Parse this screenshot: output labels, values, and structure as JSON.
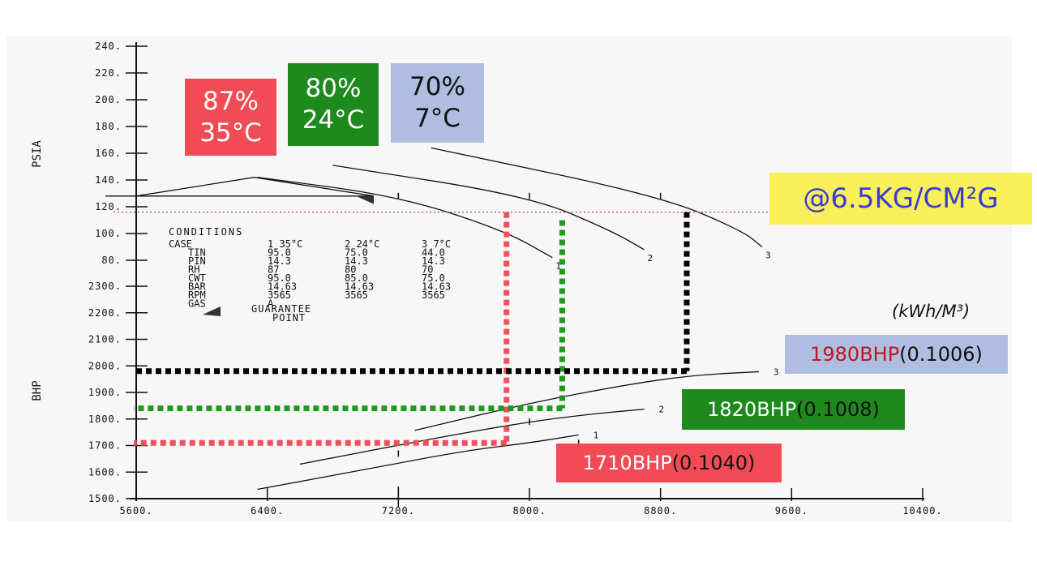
{
  "chart_data": {
    "type": "line",
    "x_axis": {
      "ticks": [
        "5600.",
        "6400.",
        "7200.",
        "8000.",
        "8800.",
        "9600.",
        "10400."
      ],
      "range": [
        5600,
        10400
      ]
    },
    "psia_axis": {
      "title": "PSIA",
      "ticks": [
        "80.",
        "100.",
        "120.",
        "140.",
        "160.",
        "180.",
        "200.",
        "220.",
        "240."
      ],
      "range": [
        80,
        240
      ]
    },
    "bhp_axis": {
      "title": "BHP",
      "ticks": [
        "1500.",
        "1600.",
        "1700.",
        "1800.",
        "1900.",
        "2000.",
        "2100.",
        "2200.",
        "2300."
      ],
      "range": [
        1500,
        2300
      ]
    },
    "psia_series": [
      {
        "name": "1",
        "x": [
          6340,
          7200,
          7850,
          8140
        ],
        "y": [
          142,
          128,
          102,
          82
        ]
      },
      {
        "name": "2",
        "x": [
          6800,
          8000,
          8500,
          8700
        ],
        "y": [
          151,
          128,
          102,
          88
        ]
      },
      {
        "name": "3",
        "x": [
          7400,
          8800,
          9300,
          9420
        ],
        "y": [
          164,
          128,
          102,
          90
        ]
      }
    ],
    "bhp_series": [
      {
        "name": "1",
        "x": [
          6340,
          7000,
          7600,
          8000,
          8300
        ],
        "y": [
          1535,
          1610,
          1680,
          1710,
          1740
        ]
      },
      {
        "name": "2",
        "x": [
          6600,
          7400,
          8000,
          8400,
          8700
        ],
        "y": [
          1630,
          1725,
          1790,
          1820,
          1837
        ]
      },
      {
        "name": "3",
        "x": [
          7300,
          8000,
          8600,
          9000,
          9400
        ],
        "y": [
          1757,
          1860,
          1930,
          1965,
          1978
        ]
      }
    ],
    "design_line": {
      "x": [
        5600,
        6320,
        7050
      ],
      "y": [
        128,
        142,
        128
      ]
    },
    "ticks_on_curves": [
      {
        "axis": "psia",
        "x": [
          7200,
          8000,
          8800
        ],
        "y": [
          128,
          128,
          128
        ]
      },
      {
        "axis": "bhp",
        "x": [
          7200,
          8000,
          8300
        ],
        "y": [
          1670,
          1790,
          1710
        ]
      }
    ],
    "guides": [
      {
        "case": "87%",
        "color": "#f0505a",
        "x": 7860,
        "psia": 116,
        "bhp": 1710
      },
      {
        "case": "80%",
        "color": "#1f9a1f",
        "x": 8200,
        "psia": 110,
        "bhp": 1840
      },
      {
        "case": "70%",
        "color": "#000000",
        "x": 8960,
        "psia": 116,
        "bhp": 1980
      }
    ],
    "reference_line": {
      "psia": 116,
      "color": "#e0303a"
    }
  },
  "conditions": {
    "title": "CONDITIONS",
    "rows": [
      {
        "label": "CASE",
        "c1": "1 35°C",
        "c2": "2 24°C",
        "c3": "3 7°C"
      },
      {
        "label": "TIN",
        "c1": "95.0",
        "c2": "75.0",
        "c3": "44.0"
      },
      {
        "label": "PIN",
        "c1": "14.3",
        "c2": "14.3",
        "c3": "14.3"
      },
      {
        "label": "RH",
        "c1": "87",
        "c2": "80",
        "c3": "70"
      },
      {
        "label": "CWT",
        "c1": "95.0",
        "c2": "85.0",
        "c3": "75.0"
      },
      {
        "label": "BAR",
        "c1": "14.63",
        "c2": "14.63",
        "c3": "14.63"
      },
      {
        "label": "RPM",
        "c1": "3565",
        "c2": "3565",
        "c3": "3565"
      },
      {
        "label": "GAS",
        "c1": "A",
        "c2": "",
        "c3": ""
      }
    ],
    "guarantee": [
      "GUARANTEE",
      "POINT"
    ]
  },
  "boxes": {
    "case1": {
      "line1": "87%",
      "line2": "35°C",
      "bg": "#f24b55",
      "fg": "#ffffff"
    },
    "case2": {
      "line1": "80%",
      "line2": "24°C",
      "bg": "#1e8a1e",
      "fg": "#ffffff"
    },
    "case3": {
      "line1": "70%",
      "line2": "7°C",
      "bg": "#aebde0",
      "fg": "#111111"
    }
  },
  "pressure_label": {
    "text": "@6.5KG/CM²G",
    "bg": "#f7f05a",
    "fg": "#3b3bd1"
  },
  "unit_label": "(kWh/M³)",
  "bhp_labels": {
    "case3": {
      "bhp": "1980BHP",
      "ratio": "(0.1006)",
      "bg": "#aebde0",
      "bhp_color": "#c0151f",
      "ratio_color": "#111111"
    },
    "case2": {
      "bhp": "1820BHP",
      "ratio": "(0.1008)",
      "bg": "#1e8a1e",
      "bhp_color": "#ffffff",
      "ratio_color": "#111111"
    },
    "case1": {
      "bhp": "1710BHP",
      "ratio": "(0.1040)",
      "bg": "#f24b55",
      "bhp_color": "#ffffff",
      "ratio_color": "#111111"
    }
  }
}
